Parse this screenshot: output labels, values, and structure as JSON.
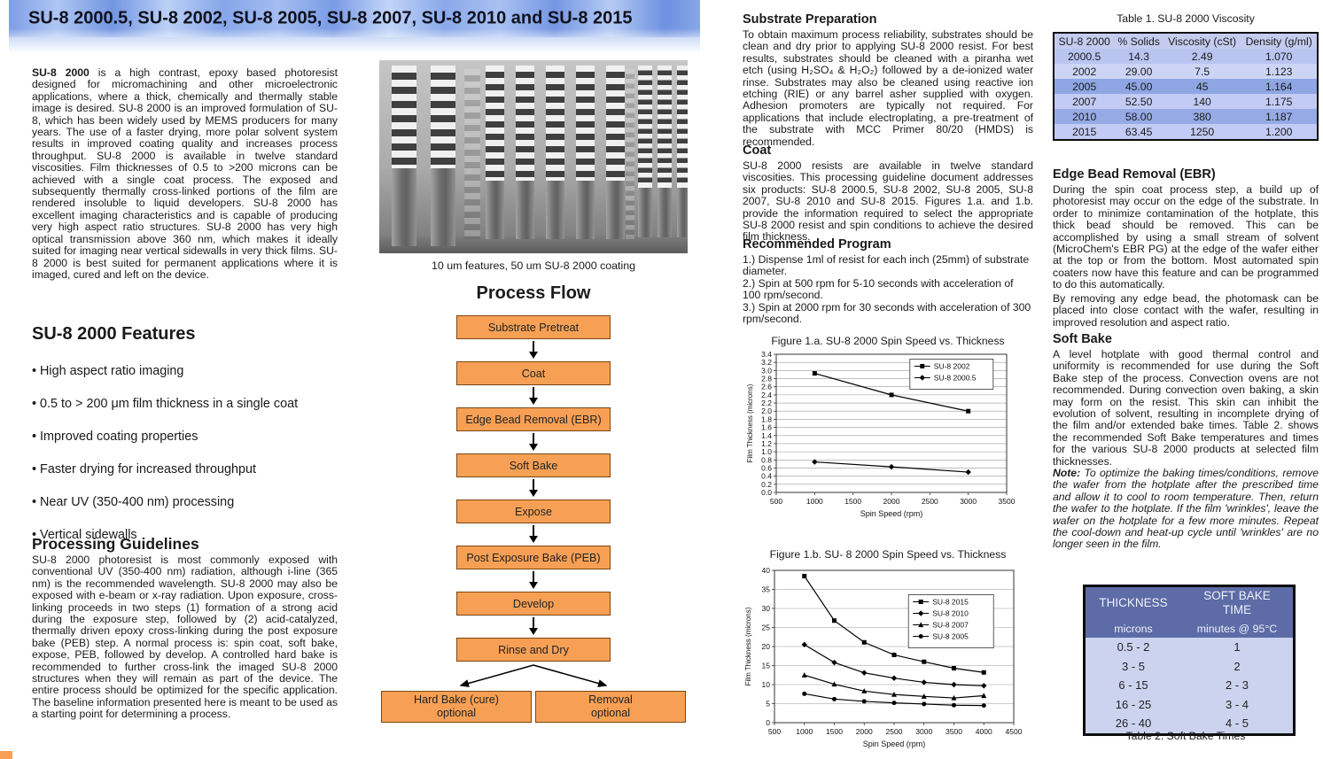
{
  "page1": {
    "banner_title": "SU-8 2000.5, SU-8 2002, SU-8 2005, SU-8 2007, SU-8 2010 and SU-8 2015",
    "intro_lead": "SU-8 2000",
    "intro_body": " is a high contrast, epoxy based photoresist designed for micromachining and other microelectronic applications, where a thick, chemically and thermally stable image is desired.  SU-8 2000 is an improved formulation of SU-8, which has been widely used by MEMS producers for many years. The use of a faster drying, more polar solvent system results in improved coating quality and increases process throughput. SU-8 2000 is available in twelve standard viscosities. Film thicknesses of 0.5 to >200 microns can be achieved with a single coat process. The exposed and subsequently thermally cross-linked portions of the film are rendered insoluble to liquid developers. SU-8 2000 has excellent imaging characteristics and is capable of producing very high aspect ratio structures.  SU-8 2000 has very high optical transmission above 360 nm, which makes it ideally suited for imaging near vertical sidewalls in very thick films. SU-8 2000 is best suited for permanent applications where it is imaged, cured and left on the device.",
    "features_title": "SU-8 2000 Features",
    "features": [
      "High aspect ratio imaging",
      "0.5 to > 200 μm film thickness in a single coat",
      "Improved coating properties",
      "Faster drying for increased throughput",
      "Near UV (350-400 nm) processing",
      "Vertical sidewalls"
    ],
    "processing_title": "Processing Guidelines",
    "processing_body": "SU-8 2000 photoresist is most commonly exposed with conventional UV (350-400 nm) radiation, although i-line (365 nm) is the recommended wavelength.  SU-8 2000 may also be exposed with e-beam or x-ray radiation.  Upon exposure, cross-linking proceeds in two steps (1) formation of a strong acid during the exposure step, followed by (2) acid-catalyzed, thermally driven epoxy cross-linking during the post exposure bake (PEB) step.  A normal process is:  spin coat, soft bake, expose, PEB, followed by develop.  A controlled hard bake is recommended to further cross-link the imaged SU-8 2000 structures when they will remain as part of the device. The entire process should be optimized for the specific application. The baseline information presented here is meant to be used as a starting point for determining a process.",
    "image_caption": "10 um features, 50 um SU-8 2000 coating",
    "process_flow_title": "Process Flow",
    "flow_steps": [
      "Substrate Pretreat",
      "Coat",
      "Edge Bead Removal (EBR)",
      "Soft Bake",
      "Expose",
      "Post Exposure Bake (PEB)",
      "Develop",
      "Rinse and Dry"
    ],
    "branches": [
      {
        "line1": "Hard Bake (cure)",
        "line2": "optional"
      },
      {
        "line1": "Removal",
        "line2": "optional"
      }
    ],
    "flow_box_color": "#f7a055"
  },
  "page2": {
    "substrate_prep_title": "Substrate Preparation",
    "substrate_prep_body": "To obtain maximum process reliability, substrates should be clean and dry prior to applying SU-8 2000 resist. For best results, substrates should be cleaned with a piranha wet etch (using H₂SO₄ & H₂O₂) followed by a de-ionized water rinse. Substrates may also be cleaned using reactive ion etching (RIE) or any barrel asher supplied with oxygen.  Adhesion promoters are typically not required. For applications that include electroplating, a pre-treatment of the substrate with MCC Primer 80/20 (HMDS) is recommended.",
    "coat_title": "Coat",
    "coat_body": "SU-8 2000 resists are available in twelve standard viscosities. This processing guideline document addresses six products: SU-8 2000.5, SU-8 2002, SU-8 2005, SU-8 2007, SU-8 2010 and SU-8 2015. Figures 1.a. and 1.b. provide the information required to select the appropriate SU-8 2000 resist and spin conditions to achieve the desired film thickness.",
    "program_title": "Recommended Program",
    "program_steps": [
      "1.) Dispense 1ml of resist for each inch (25mm) of substrate diameter.",
      "2.) Spin at 500 rpm for 5-10 seconds with acceleration of 100 rpm/second.",
      "3.) Spin at 2000 rpm for 30 seconds with acceleration of 300 rpm/second."
    ],
    "table1": {
      "caption": "Table 1. SU-8 2000 Viscosity",
      "headers": [
        "SU-8 2000",
        "% Solids",
        "Viscosity (cSt)",
        "Density (g/ml)"
      ],
      "rows": [
        [
          "2000.5",
          "14.3",
          "2.49",
          "1.070"
        ],
        [
          "2002",
          "29.00",
          "7.5",
          "1.123"
        ],
        [
          "2005",
          "45.00",
          "45",
          "1.164"
        ],
        [
          "2007",
          "52.50",
          "140",
          "1.175"
        ],
        [
          "2010",
          "58.00",
          "380",
          "1.187"
        ],
        [
          "2015",
          "63.45",
          "1250",
          "1.200"
        ]
      ],
      "header_color": "#c5cbee",
      "row_colors": [
        "#b9c4f1",
        "#cdd5f6",
        "#8ea6e4",
        "#c2cbf3",
        "#96abe6",
        "#c2cbf3"
      ]
    },
    "ebr_title": "Edge Bead Removal (EBR)",
    "ebr_body1": "During the spin coat process step, a build up of photoresist may occur on the edge of the substrate. In order to minimize contamination of the hotplate, this thick bead should be removed. This can be accomplished by using a small stream of solvent (MicroChem's EBR PG) at the edge of the wafer either at the top or from the bottom.  Most automated spin coaters now have this feature and can be programmed to do this automatically.",
    "ebr_body2": "By removing any edge bead, the photomask can be placed into close contact with the wafer, resulting in improved resolution and aspect ratio.",
    "softbake_title": "Soft Bake",
    "softbake_body": "A level hotplate with good thermal control and uniformity is recommended for use during the Soft Bake step of the process. Convection ovens are not recommended. During convection oven baking, a skin may form on the resist. This skin can inhibit the evolution of solvent, resulting in incomplete drying of the film and/or extended bake times. Table 2. shows the recommended Soft Bake temperatures and times for the various SU-8 2000 products at selected film thicknesses.",
    "note_label": "Note:",
    "note_body": " To optimize the baking times/conditions, remove the wafer from the hotplate after the prescribed time and allow it to cool to room temperature. Then, return the wafer to the hotplate.  If the film 'wrinkles', leave the wafer on the hotplate for a few more minutes.  Repeat the cool-down and heat-up cycle until 'wrinkles' are no longer seen in the film.",
    "table2": {
      "caption": "Table 2. Soft Bake Times",
      "headers": [
        "THICKNESS",
        "SOFT BAKE\nTIME"
      ],
      "subheaders": [
        "microns",
        "minutes @ 95°C"
      ],
      "rows": [
        [
          "0.5 - 2",
          "1"
        ],
        [
          "3 - 5",
          "2"
        ],
        [
          "6 - 15",
          "2 - 3"
        ],
        [
          "16 - 25",
          "3 - 4"
        ],
        [
          "26 - 40",
          "4 - 5"
        ]
      ],
      "header_color": "#5d6ba6",
      "body_color": "#ccd3ee"
    }
  },
  "chart_data": [
    {
      "type": "line",
      "title": "Figure 1.a. SU-8 2000 Spin Speed vs. Thickness",
      "xlabel": "Spin Speed (rpm)",
      "ylabel": "Film Thickness (microns)",
      "xlim": [
        500,
        3500
      ],
      "ylim": [
        0,
        3.4
      ],
      "xtick_step": 500,
      "ytick_step": 0.2,
      "ydecimals": 1,
      "grid": "horizontal",
      "legend_position": "top-right-inside",
      "x": [
        1000,
        2000,
        3000
      ],
      "series": [
        {
          "name": "SU-8 2002",
          "marker": "square",
          "values": [
            2.93,
            2.4,
            2.0
          ]
        },
        {
          "name": "SU-8 2000.5",
          "marker": "diamond",
          "values": [
            0.75,
            0.63,
            0.5
          ]
        }
      ]
    },
    {
      "type": "line",
      "title": "Figure 1.b. SU- 8 2000 Spin Speed vs. Thickness",
      "xlabel": "Spin Speed (rpm)",
      "ylabel": "Film Thickness (microns)",
      "xlim": [
        500,
        4500
      ],
      "ylim": [
        0,
        40
      ],
      "xtick_step": 500,
      "ytick_step": 5,
      "ydecimals": 0,
      "grid": "horizontal",
      "legend_position": "right-inside",
      "x": [
        1000,
        1500,
        2000,
        2500,
        3000,
        3500,
        4000
      ],
      "series": [
        {
          "name": "SU-8 2015",
          "marker": "square",
          "values": [
            38.5,
            26.8,
            21.1,
            17.8,
            16.0,
            14.3,
            13.2
          ]
        },
        {
          "name": "SU-8 2010",
          "marker": "diamond",
          "values": [
            20.5,
            15.8,
            13.1,
            11.7,
            10.6,
            10.0,
            9.7
          ]
        },
        {
          "name": "SU-8 2007",
          "marker": "triangle",
          "values": [
            12.5,
            10.1,
            8.3,
            7.4,
            6.9,
            6.5,
            7.1
          ]
        },
        {
          "name": "SU-8 2005",
          "marker": "circle",
          "values": [
            7.6,
            6.2,
            5.6,
            5.2,
            4.9,
            4.6,
            4.5
          ]
        }
      ]
    }
  ]
}
